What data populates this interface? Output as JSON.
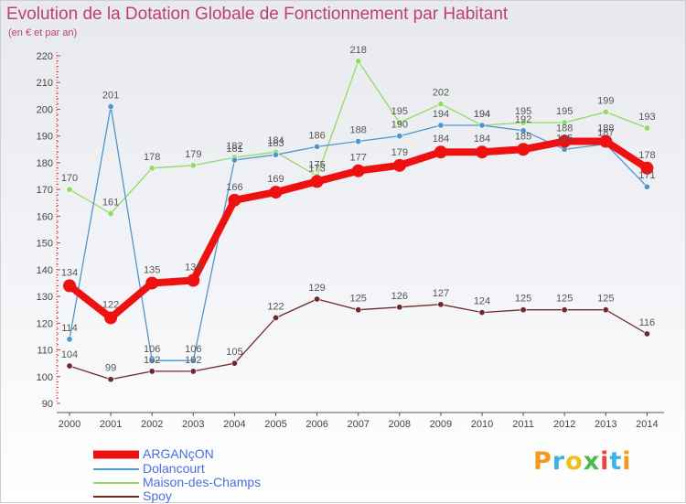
{
  "chart_data": {
    "type": "line",
    "title": "Evolution de la Dotation Globale de Fonctionnement par Habitant",
    "subtitle": "(en € et par an)",
    "xlabel": "",
    "ylabel": "",
    "ylim": [
      90,
      220
    ],
    "yticks": [
      90,
      100,
      110,
      120,
      130,
      140,
      150,
      160,
      170,
      180,
      190,
      200,
      210,
      220
    ],
    "grid": false,
    "legend_position": "bottom-left",
    "x": [
      "2000",
      "2001",
      "2002",
      "2003",
      "2004",
      "2005",
      "2006",
      "2007",
      "2008",
      "2009",
      "2010",
      "2011",
      "2012",
      "2013",
      "2014"
    ],
    "series": [
      {
        "name": "Maison-des-Champs",
        "color": "#8fdc64",
        "values": [
          170,
          161,
          178,
          179,
          182,
          184,
          175,
          218,
          195,
          202,
          194,
          195,
          195,
          199,
          193
        ],
        "labels": [
          "170",
          "161",
          "178",
          "179",
          "182",
          "184",
          "175",
          "218",
          "195",
          "202",
          "194",
          "195",
          "195",
          "199",
          "193"
        ]
      },
      {
        "name": "Dolancourt",
        "color": "#4f96cf",
        "values": [
          114,
          201,
          106,
          106,
          181,
          183,
          186,
          188,
          190,
          194,
          194,
          192,
          185,
          187,
          171
        ],
        "labels": [
          "114",
          "201",
          "106",
          "106",
          "181",
          "183",
          "186",
          "188",
          "190",
          "194",
          "194",
          "192",
          "185",
          "187",
          "171"
        ]
      },
      {
        "name": "Spoy",
        "color": "#6e2a2a",
        "values": [
          104,
          99,
          102,
          102,
          105,
          122,
          129,
          125,
          126,
          127,
          124,
          125,
          125,
          125,
          116
        ],
        "labels": [
          "104",
          "99",
          "102",
          "102",
          "105",
          "122",
          "129",
          "125",
          "126",
          "127",
          "124",
          "125",
          "125",
          "125",
          "116"
        ]
      },
      {
        "name": "ARGANçON",
        "color": "#ee1111",
        "values": [
          134,
          122,
          135,
          136,
          166,
          169,
          173,
          177,
          179,
          184,
          184,
          185,
          188,
          188,
          178
        ],
        "labels": [
          "134",
          "122",
          "135",
          "136",
          "166",
          "169",
          "173",
          "177",
          "179",
          "184",
          "184",
          "185",
          "188",
          "188",
          "178"
        ]
      }
    ]
  },
  "legend": {
    "items": [
      {
        "label": "ARGANçON",
        "color": "#ee1111"
      },
      {
        "label": "Dolancourt",
        "color": "#4f96cf"
      },
      {
        "label": "Maison-des-Champs",
        "color": "#8fdc64"
      },
      {
        "label": "Spoy",
        "color": "#6e2a2a"
      }
    ]
  },
  "logo": {
    "text": "Proxiti",
    "colors": [
      "#f39a1c",
      "#3cb4e6",
      "#e8c21a",
      "#4fb84a",
      "#e8463a",
      "#3cb4e6",
      "#f39a1c"
    ]
  }
}
